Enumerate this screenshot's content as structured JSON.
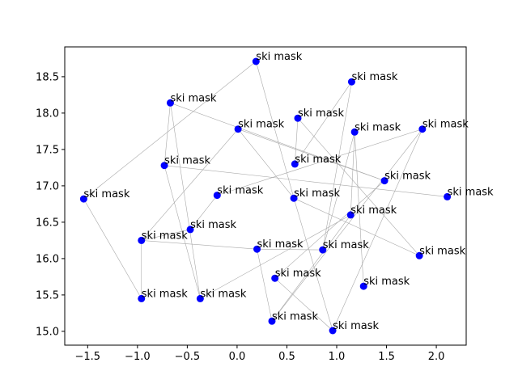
{
  "chart_data": {
    "type": "scatter",
    "title": "",
    "xlabel": "",
    "ylabel": "",
    "xlim": [
      -1.73,
      2.3
    ],
    "ylim": [
      14.81,
      18.91
    ],
    "xticks": [
      -1.5,
      -1.0,
      -0.5,
      0.0,
      0.5,
      1.0,
      1.5,
      2.0
    ],
    "xtick_labels": [
      "−1.5",
      "−1.0",
      "−0.5",
      "0.0",
      "0.5",
      "1.0",
      "1.5",
      "2.0"
    ],
    "yticks": [
      15.0,
      15.5,
      16.0,
      16.5,
      17.0,
      17.5,
      18.0,
      18.5
    ],
    "ytick_labels": [
      "15.0",
      "15.5",
      "16.0",
      "16.5",
      "17.0",
      "17.5",
      "18.0",
      "18.5"
    ],
    "grid": false,
    "marker_color": "#0000ff",
    "edge_color": "#a9a9a9",
    "points": [
      {
        "x": 0.19,
        "y": 18.71,
        "label": "ski mask"
      },
      {
        "x": 1.15,
        "y": 18.43,
        "label": "ski mask"
      },
      {
        "x": -0.67,
        "y": 18.14,
        "label": "ski mask"
      },
      {
        "x": 0.61,
        "y": 17.93,
        "label": "ski mask"
      },
      {
        "x": 0.01,
        "y": 17.78,
        "label": "ski mask"
      },
      {
        "x": 1.18,
        "y": 17.74,
        "label": "ski mask"
      },
      {
        "x": 1.86,
        "y": 17.78,
        "label": "ski mask"
      },
      {
        "x": -0.73,
        "y": 17.28,
        "label": "ski mask"
      },
      {
        "x": 0.58,
        "y": 17.3,
        "label": "ski mask"
      },
      {
        "x": 1.48,
        "y": 17.07,
        "label": "ski mask"
      },
      {
        "x": -1.54,
        "y": 16.82,
        "label": "ski mask"
      },
      {
        "x": -0.2,
        "y": 16.87,
        "label": "ski mask"
      },
      {
        "x": 0.57,
        "y": 16.83,
        "label": "ski mask"
      },
      {
        "x": 2.11,
        "y": 16.85,
        "label": "ski mask"
      },
      {
        "x": 1.14,
        "y": 16.6,
        "label": "ski mask"
      },
      {
        "x": -0.47,
        "y": 16.4,
        "label": "ski mask"
      },
      {
        "x": -0.96,
        "y": 16.25,
        "label": "ski mask"
      },
      {
        "x": 0.2,
        "y": 16.13,
        "label": "ski mask"
      },
      {
        "x": 0.86,
        "y": 16.12,
        "label": "ski mask"
      },
      {
        "x": 1.83,
        "y": 16.04,
        "label": "ski mask"
      },
      {
        "x": 0.38,
        "y": 15.73,
        "label": "ski mask"
      },
      {
        "x": 1.27,
        "y": 15.62,
        "label": "ski mask"
      },
      {
        "x": -0.96,
        "y": 15.45,
        "label": "ski mask"
      },
      {
        "x": -0.37,
        "y": 15.45,
        "label": "ski mask"
      },
      {
        "x": 0.35,
        "y": 15.14,
        "label": "ski mask"
      },
      {
        "x": 0.96,
        "y": 15.01,
        "label": "ski mask"
      }
    ],
    "edges": [
      [
        0,
        10
      ],
      [
        0,
        12
      ],
      [
        10,
        22
      ],
      [
        22,
        16
      ],
      [
        16,
        4
      ],
      [
        4,
        9
      ],
      [
        2,
        7
      ],
      [
        2,
        9
      ],
      [
        7,
        23
      ],
      [
        23,
        2
      ],
      [
        7,
        13
      ],
      [
        16,
        17
      ],
      [
        17,
        18
      ],
      [
        18,
        5
      ],
      [
        5,
        21
      ],
      [
        1,
        8
      ],
      [
        1,
        18
      ],
      [
        8,
        3
      ],
      [
        3,
        19
      ],
      [
        12,
        19
      ],
      [
        12,
        25
      ],
      [
        25,
        6
      ],
      [
        6,
        11
      ],
      [
        11,
        15
      ],
      [
        15,
        16
      ],
      [
        5,
        14
      ],
      [
        14,
        24
      ],
      [
        24,
        6
      ],
      [
        17,
        24
      ],
      [
        20,
        25
      ],
      [
        20,
        9
      ],
      [
        4,
        12
      ],
      [
        14,
        23
      ]
    ]
  }
}
